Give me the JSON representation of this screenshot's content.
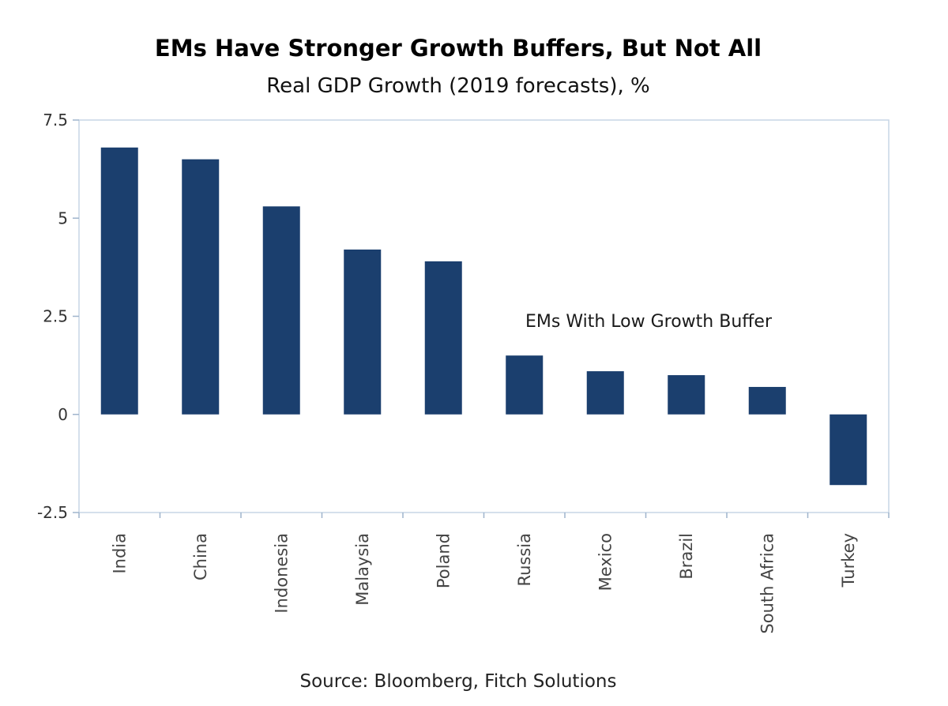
{
  "chart_data": {
    "type": "bar",
    "title": "EMs Have Stronger Growth Buffers, But Not All",
    "subtitle": "Real GDP Growth (2019 forecasts), %",
    "categories": [
      "India",
      "China",
      "Indonesia",
      "Malaysia",
      "Poland",
      "Russia",
      "Mexico",
      "Brazil",
      "South Africa",
      "Turkey"
    ],
    "values": [
      6.8,
      6.5,
      5.3,
      4.2,
      3.9,
      1.5,
      1.1,
      1.0,
      0.7,
      -1.8
    ],
    "ylim": [
      -2.5,
      7.5
    ],
    "yticks": [
      7.5,
      5,
      2.5,
      0,
      -2.5
    ],
    "ytick_labels": [
      "7.5",
      "5",
      "2.5",
      "0",
      "-2.5"
    ],
    "xlabel": "",
    "ylabel": "",
    "annotation": "EMs With Low Growth Buffer",
    "source": "Source: Bloomberg, Fitch Solutions",
    "bar_color": "#1b3f6e",
    "grid": false,
    "legend": "none"
  }
}
